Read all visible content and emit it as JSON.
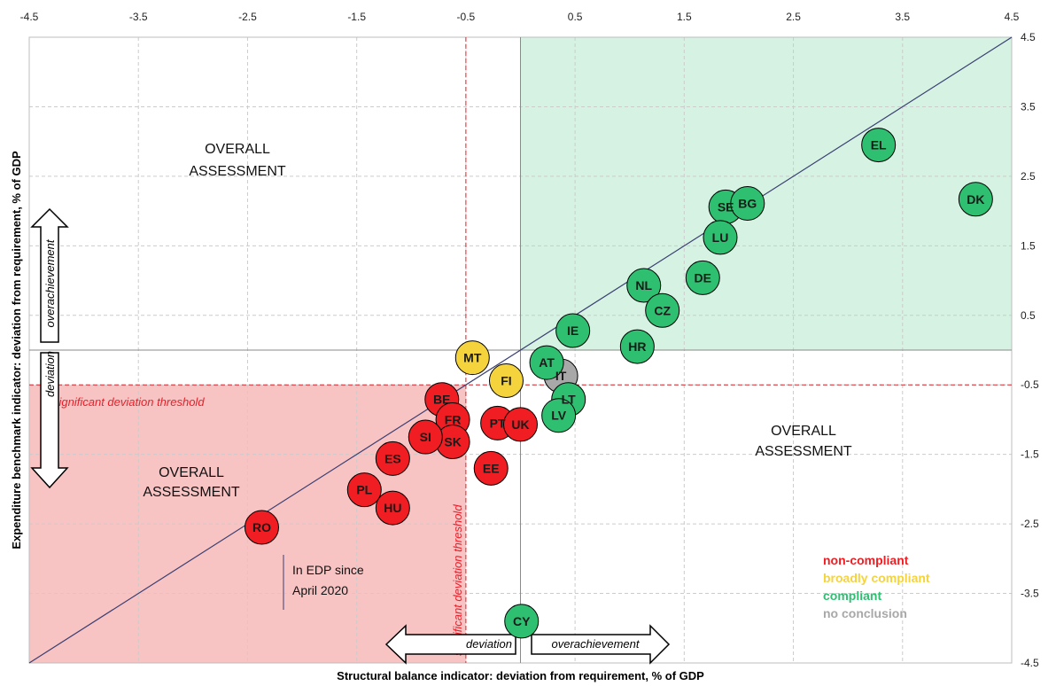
{
  "chart_data": {
    "type": "scatter",
    "xlabel": "Structural balance indicator: deviation from requirement, % of GDP",
    "ylabel": "Expenditure benchmark indicator: deviation from requirement, % of GDP",
    "xlim": [
      -4.5,
      4.5
    ],
    "ylim": [
      -4.5,
      4.5
    ],
    "x_ticks": [
      "-4.5",
      "-3.5",
      "-2.5",
      "-1.5",
      "-0.5",
      "0.5",
      "1.5",
      "2.5",
      "3.5",
      "4.5"
    ],
    "y_ticks": [
      "4.5",
      "3.5",
      "2.5",
      "1.5",
      "0.5",
      "-0.5",
      "-1.5",
      "-2.5",
      "-3.5",
      "-4.5"
    ],
    "grid": true,
    "threshold": -0.5,
    "threshold_label_h": "significant deviation threshold",
    "threshold_label_v": "significant deviation threshold",
    "quadrant_label_top_left": [
      "OVERALL",
      "ASSESSMENT"
    ],
    "quadrant_label_right": [
      "OVERALL",
      "ASSESSMENT"
    ],
    "quadrant_label_bottom_left": [
      "OVERALL",
      "ASSESSMENT"
    ],
    "arrow_y_up": "overachievement",
    "arrow_y_down": "deviation",
    "arrow_x_left": "deviation",
    "arrow_x_right": "overachievement",
    "note_lines": [
      "In EDP since",
      "April 2020"
    ],
    "colors": {
      "non_compliant": "#f01e23",
      "broadly_compliant": "#f5d33c",
      "compliant": "#2fbf71",
      "no_conclusion": "#a8a8a8",
      "green_zone": "#d5f2e2",
      "red_zone": "#f8c3c3",
      "threshold_line": "#e8202a",
      "diagonal": "#3a3f73"
    },
    "legend": [
      {
        "label": "non-compliant",
        "color": "#f01e23"
      },
      {
        "label": "broadly compliant",
        "color": "#f5d33c"
      },
      {
        "label": "compliant",
        "color": "#2fbf71"
      },
      {
        "label": "no conclusion",
        "color": "#a8a8a8"
      }
    ],
    "points": [
      {
        "label": "EL",
        "x": 3.28,
        "y": 2.95,
        "status": "compliant"
      },
      {
        "label": "DK",
        "x": 4.17,
        "y": 2.17,
        "status": "compliant"
      },
      {
        "label": "SE",
        "x": 1.88,
        "y": 2.06,
        "status": "compliant"
      },
      {
        "label": "BG",
        "x": 2.08,
        "y": 2.11,
        "status": "compliant"
      },
      {
        "label": "LU",
        "x": 1.83,
        "y": 1.62,
        "status": "compliant"
      },
      {
        "label": "DE",
        "x": 1.67,
        "y": 1.04,
        "status": "compliant"
      },
      {
        "label": "NL",
        "x": 1.13,
        "y": 0.93,
        "status": "compliant"
      },
      {
        "label": "CZ",
        "x": 1.3,
        "y": 0.57,
        "status": "compliant"
      },
      {
        "label": "IE",
        "x": 0.48,
        "y": 0.28,
        "status": "compliant"
      },
      {
        "label": "HR",
        "x": 1.07,
        "y": 0.05,
        "status": "compliant"
      },
      {
        "label": "IT",
        "x": 0.37,
        "y": -0.37,
        "status": "no_conclusion"
      },
      {
        "label": "AT",
        "x": 0.24,
        "y": -0.18,
        "status": "compliant"
      },
      {
        "label": "LT",
        "x": 0.44,
        "y": -0.71,
        "status": "compliant"
      },
      {
        "label": "LV",
        "x": 0.35,
        "y": -0.94,
        "status": "compliant"
      },
      {
        "label": "CY",
        "x": 0.01,
        "y": -3.9,
        "status": "compliant"
      },
      {
        "label": "MT",
        "x": -0.44,
        "y": -0.11,
        "status": "broadly_compliant"
      },
      {
        "label": "FI",
        "x": -0.13,
        "y": -0.44,
        "status": "broadly_compliant"
      },
      {
        "label": "BE",
        "x": -0.72,
        "y": -0.71,
        "status": "non_compliant"
      },
      {
        "label": "FR",
        "x": -0.62,
        "y": -1.0,
        "status": "non_compliant"
      },
      {
        "label": "SK",
        "x": -0.62,
        "y": -1.32,
        "status": "non_compliant"
      },
      {
        "label": "SI",
        "x": -0.87,
        "y": -1.25,
        "status": "non_compliant"
      },
      {
        "label": "PT",
        "x": -0.21,
        "y": -1.05,
        "status": "non_compliant"
      },
      {
        "label": "UK",
        "x": 0.0,
        "y": -1.07,
        "status": "non_compliant"
      },
      {
        "label": "EE",
        "x": -0.27,
        "y": -1.7,
        "status": "non_compliant"
      },
      {
        "label": "ES",
        "x": -1.17,
        "y": -1.56,
        "status": "non_compliant"
      },
      {
        "label": "PL",
        "x": -1.43,
        "y": -2.01,
        "status": "non_compliant"
      },
      {
        "label": "HU",
        "x": -1.17,
        "y": -2.27,
        "status": "non_compliant"
      },
      {
        "label": "RO",
        "x": -2.37,
        "y": -2.55,
        "status": "non_compliant"
      }
    ]
  }
}
